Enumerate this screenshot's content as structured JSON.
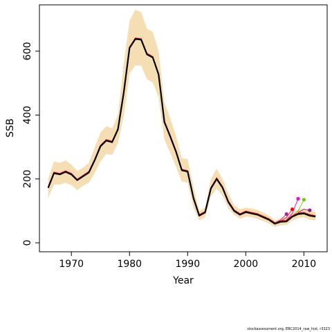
{
  "chart_data": {
    "type": "line",
    "title": "",
    "xlabel": "Year",
    "ylabel": "SSB",
    "xlim": [
      1964.5,
      2014
    ],
    "ylim": [
      -28,
      745
    ],
    "x_ticks": [
      1970,
      1980,
      1990,
      2000,
      2010
    ],
    "y_ticks": [
      0,
      200,
      400,
      600
    ],
    "grid": false,
    "legend": "none",
    "colors": {
      "band": "#f5deb3",
      "main": "#000000",
      "retro_line": "#c71585",
      "red_line": "#ff0000"
    },
    "x": [
      1966,
      1967,
      1968,
      1969,
      1970,
      1971,
      1972,
      1973,
      1974,
      1975,
      1976,
      1977,
      1978,
      1979,
      1980,
      1981,
      1982,
      1983,
      1984,
      1985,
      1986,
      1987,
      1988,
      1989,
      1990,
      1991,
      1992,
      1993,
      1994,
      1995,
      1996,
      1997,
      1998,
      1999,
      2000,
      2001,
      2002,
      2003,
      2004,
      2005,
      2006,
      2007,
      2008,
      2009,
      2010,
      2011,
      2012
    ],
    "series": [
      {
        "role": "estimate",
        "color": "#000000",
        "values": [
          172,
          218,
          214,
          222,
          214,
          196,
          208,
          220,
          258,
          302,
          320,
          315,
          355,
          470,
          610,
          638,
          636,
          590,
          580,
          527,
          378,
          333,
          285,
          227,
          223,
          140,
          85,
          95,
          170,
          200,
          173,
          128,
          100,
          88,
          96,
          92,
          88,
          80,
          72,
          60,
          66,
          67,
          82,
          90,
          92,
          85,
          82
        ]
      },
      {
        "role": "upper",
        "color": "#f5deb3",
        "values": [
          200,
          255,
          250,
          258,
          245,
          225,
          235,
          250,
          298,
          345,
          365,
          358,
          400,
          560,
          695,
          730,
          722,
          670,
          660,
          600,
          440,
          390,
          335,
          265,
          262,
          175,
          100,
          110,
          200,
          232,
          200,
          155,
          118,
          105,
          110,
          108,
          103,
          95,
          85,
          70,
          77,
          80,
          96,
          105,
          108,
          100,
          97
        ]
      },
      {
        "role": "lower",
        "color": "#f5deb3",
        "values": [
          140,
          183,
          182,
          188,
          180,
          165,
          178,
          188,
          218,
          255,
          278,
          275,
          312,
          395,
          530,
          555,
          555,
          512,
          502,
          455,
          322,
          282,
          238,
          192,
          188,
          110,
          70,
          80,
          145,
          170,
          148,
          108,
          88,
          75,
          82,
          80,
          75,
          68,
          60,
          50,
          55,
          56,
          70,
          77,
          80,
          72,
          70
        ]
      },
      {
        "role": "retro-2007",
        "color": "#9b2d9b",
        "values": [
          null,
          null,
          null,
          null,
          null,
          null,
          null,
          null,
          null,
          null,
          null,
          null,
          null,
          null,
          null,
          null,
          null,
          null,
          null,
          null,
          null,
          null,
          null,
          null,
          null,
          null,
          null,
          null,
          null,
          null,
          null,
          null,
          null,
          null,
          null,
          null,
          null,
          null,
          null,
          62,
          72,
          90,
          null,
          null,
          null,
          null,
          null
        ]
      },
      {
        "role": "retro-2008",
        "color": "#ff0000",
        "values": [
          null,
          null,
          null,
          null,
          null,
          null,
          null,
          null,
          null,
          null,
          null,
          null,
          null,
          null,
          null,
          null,
          null,
          null,
          null,
          null,
          null,
          null,
          null,
          null,
          null,
          null,
          null,
          null,
          null,
          null,
          null,
          null,
          null,
          null,
          null,
          null,
          null,
          null,
          null,
          null,
          68,
          80,
          105,
          null,
          null,
          null,
          null
        ]
      },
      {
        "role": "retro-2009",
        "color": "#ff00cc",
        "values": [
          null,
          null,
          null,
          null,
          null,
          null,
          null,
          null,
          null,
          null,
          null,
          null,
          null,
          null,
          null,
          null,
          null,
          null,
          null,
          null,
          null,
          null,
          null,
          null,
          null,
          null,
          null,
          null,
          null,
          null,
          null,
          null,
          null,
          null,
          null,
          null,
          null,
          null,
          null,
          null,
          null,
          72,
          92,
          138,
          null,
          null,
          null
        ]
      },
      {
        "role": "retro-2010",
        "color": "#66cc00",
        "values": [
          null,
          null,
          null,
          null,
          null,
          null,
          null,
          null,
          null,
          null,
          null,
          null,
          null,
          null,
          null,
          null,
          null,
          null,
          null,
          null,
          null,
          null,
          null,
          null,
          null,
          null,
          null,
          null,
          null,
          null,
          null,
          null,
          null,
          null,
          null,
          null,
          null,
          null,
          null,
          null,
          null,
          null,
          85,
          100,
          135,
          null,
          null
        ]
      },
      {
        "role": "retro-2011",
        "color": "#8b1a8b",
        "values": [
          null,
          null,
          null,
          null,
          null,
          null,
          null,
          null,
          null,
          null,
          null,
          null,
          null,
          null,
          null,
          null,
          null,
          null,
          null,
          null,
          null,
          null,
          null,
          null,
          null,
          null,
          null,
          null,
          null,
          null,
          null,
          null,
          null,
          null,
          null,
          null,
          null,
          null,
          null,
          null,
          null,
          null,
          null,
          95,
          105,
          102,
          null
        ]
      }
    ]
  },
  "footer": {
    "text": "stockassessment.org, EBC2014_raw_hist, r3323"
  }
}
